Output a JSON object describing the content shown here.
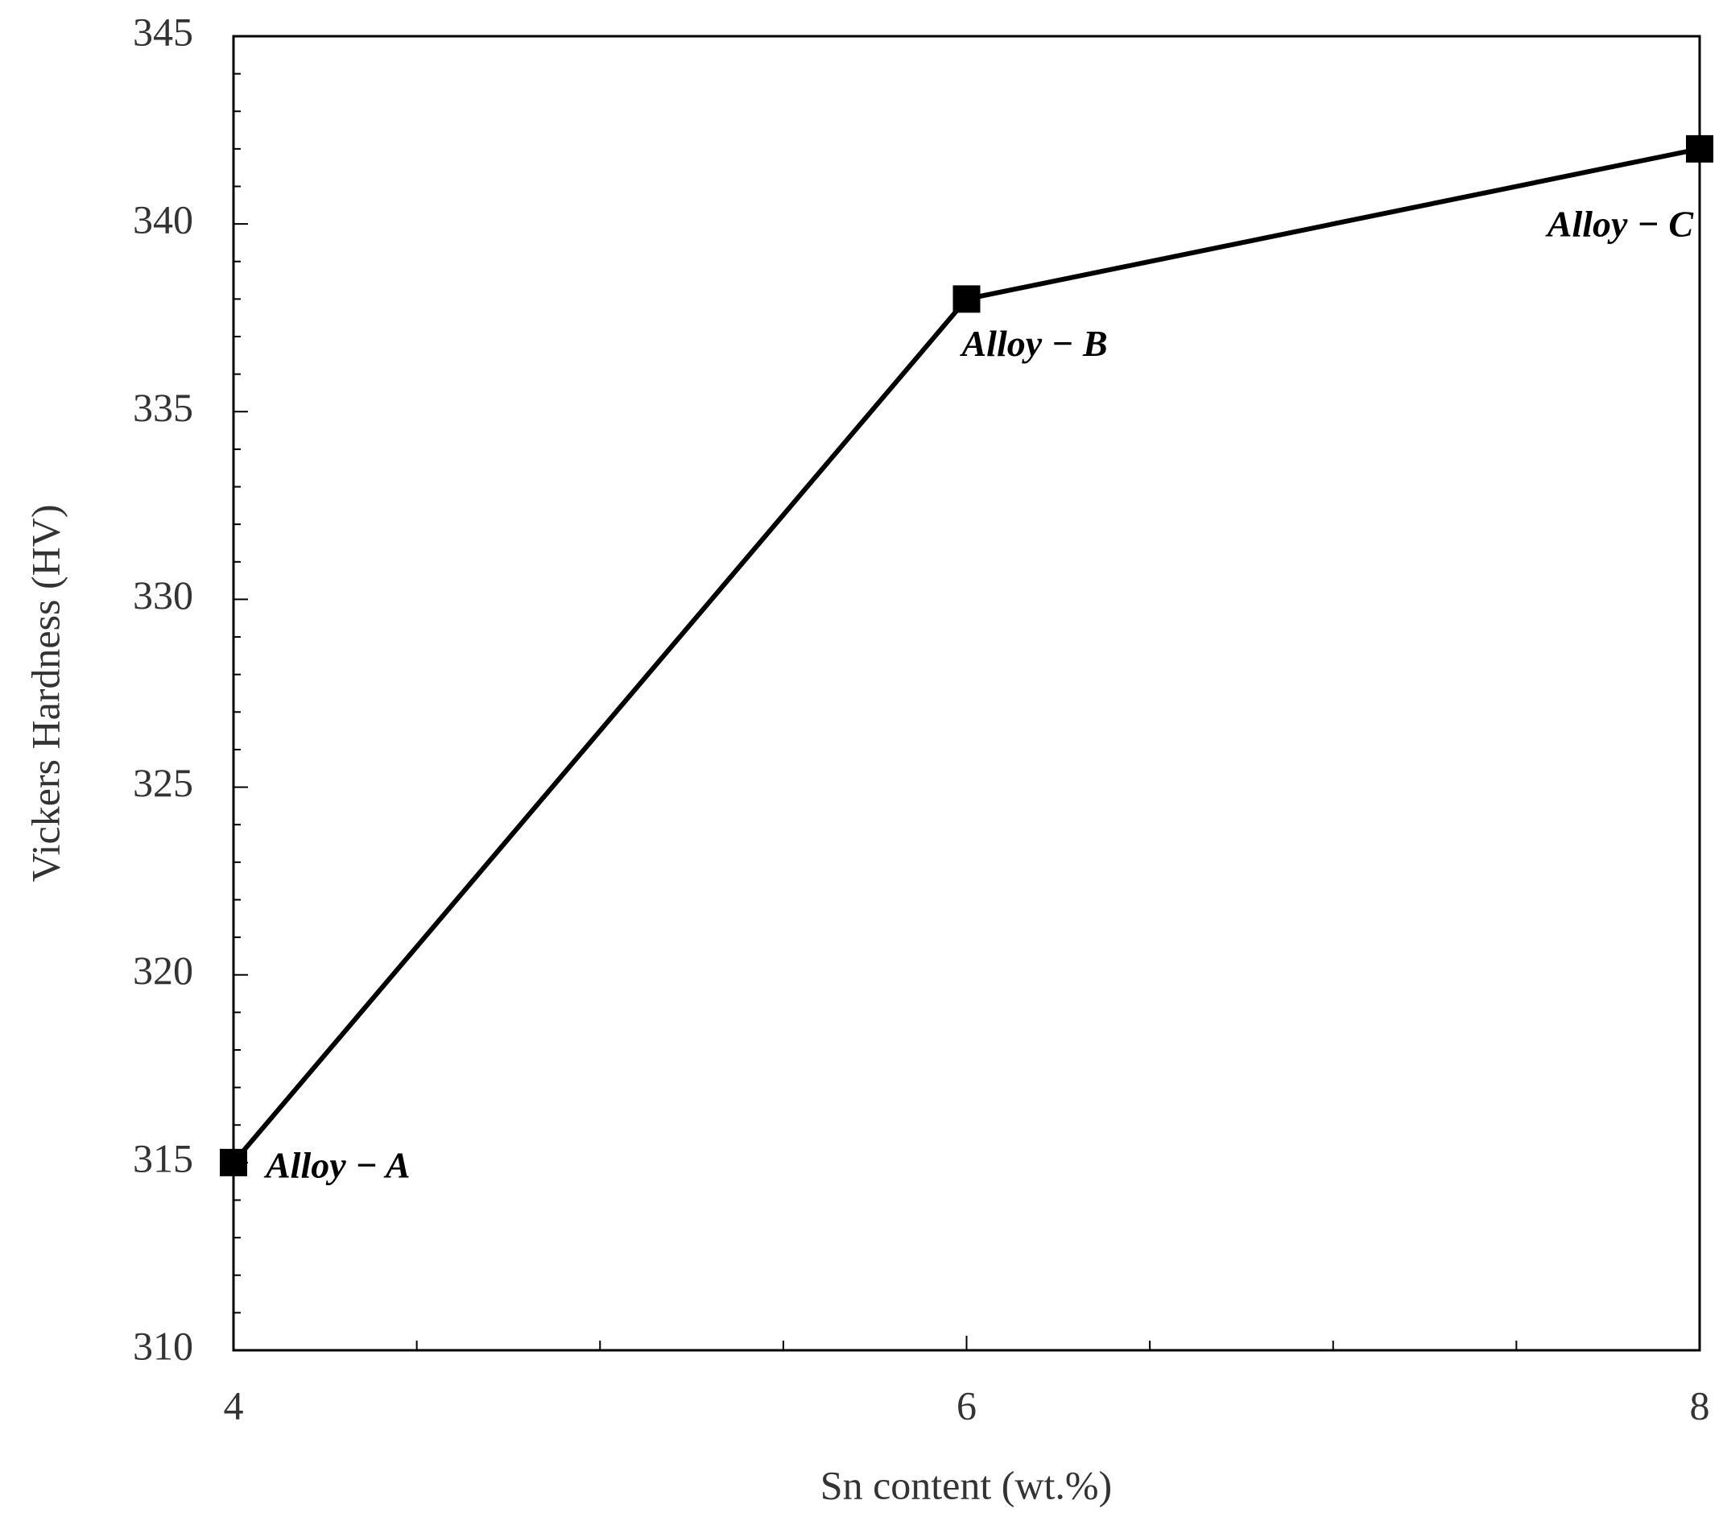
{
  "chart_data": {
    "type": "line",
    "x": [
      4,
      6,
      8
    ],
    "series": [
      {
        "values": [
          315,
          338,
          342
        ],
        "color": "#000000",
        "point_labels": [
          "Alloy − A",
          "Alloy − B",
          "Alloy − C"
        ]
      }
    ],
    "xlabel": "Sn content (wt.%)",
    "ylabel": "Vickers Hardness (HV)",
    "xlim": [
      4,
      8
    ],
    "xticks": [
      4,
      6,
      8
    ],
    "xminorticks": [
      4.5,
      5,
      5.5,
      6.5,
      7,
      7.5
    ],
    "ylim": [
      310,
      345
    ],
    "yticks": [
      310,
      315,
      320,
      325,
      330,
      335,
      340,
      345
    ],
    "yminorticks": [
      311,
      312,
      313,
      314,
      316,
      317,
      318,
      319,
      321,
      322,
      323,
      324,
      326,
      327,
      328,
      329,
      331,
      332,
      333,
      334,
      336,
      337,
      338,
      339,
      341,
      342,
      343,
      344
    ],
    "grid": false
  }
}
